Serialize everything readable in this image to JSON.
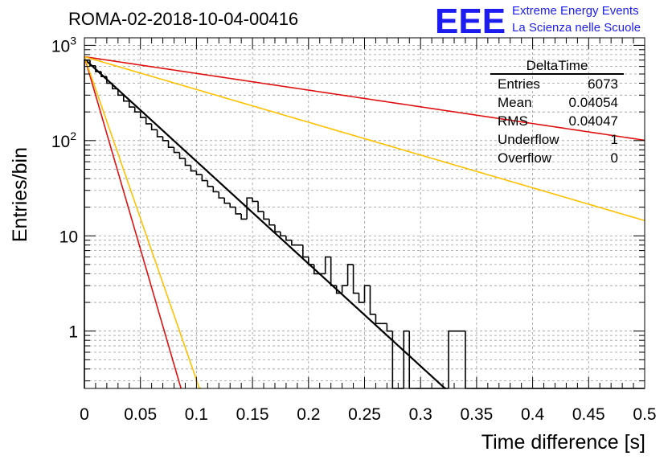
{
  "title": "ROMA-02-2018-10-04-00416",
  "logo": {
    "text": "EEE",
    "line1": "Extreme Energy Events",
    "line2": "La Scienza nelle Scuole",
    "color": "#1c1cf0"
  },
  "stats": {
    "name": "DeltaTime",
    "rows": [
      {
        "label": "Entries",
        "value": "6073"
      },
      {
        "label": "Mean",
        "value": "0.04054"
      },
      {
        "label": "RMS",
        "value": "0.04047"
      },
      {
        "label": "Underflow",
        "value": "1"
      },
      {
        "label": "Overflow",
        "value": "0"
      }
    ]
  },
  "chart_data": {
    "type": "histogram",
    "title": "ROMA-02-2018-10-04-00416",
    "xlabel": "Time difference [s]",
    "ylabel": "Entries/bin",
    "xlim": [
      0,
      0.5
    ],
    "ylim": [
      0.25,
      1200
    ],
    "yscale": "log",
    "grid": true,
    "bin_width": 0.005,
    "x_ticks": [
      "0",
      "0.05",
      "0.1",
      "0.15",
      "0.2",
      "0.25",
      "0.3",
      "0.35",
      "0.4",
      "0.45",
      "0.5"
    ],
    "x_tick_values": [
      0,
      0.05,
      0.1,
      0.15,
      0.2,
      0.25,
      0.3,
      0.35,
      0.4,
      0.45,
      0.5
    ],
    "y_ticks": [
      {
        "value": 1,
        "label": "1"
      },
      {
        "value": 10,
        "label": "10"
      },
      {
        "value": 100,
        "label": "10",
        "exp": "2"
      },
      {
        "value": 1000,
        "label": "10",
        "exp": "3"
      }
    ],
    "histogram": {
      "name": "DeltaTime",
      "values": [
        700,
        610,
        530,
        470,
        400,
        350,
        300,
        260,
        225,
        200,
        175,
        150,
        130,
        110,
        100,
        85,
        75,
        65,
        55,
        48,
        44,
        38,
        33,
        29,
        25,
        22,
        20,
        17,
        15,
        25,
        23,
        18,
        15,
        13,
        11,
        10,
        9,
        8,
        8,
        6,
        5,
        4,
        4,
        6,
        3,
        2.5,
        3,
        5,
        2.5,
        2,
        3,
        1.5,
        1.2,
        1.2,
        1,
        0,
        0,
        1,
        0,
        0,
        0,
        0,
        0,
        0,
        0,
        1,
        1,
        1,
        0,
        0,
        0,
        0,
        0,
        0,
        0,
        0,
        0,
        0,
        0,
        0,
        0,
        0,
        0,
        0,
        0,
        0,
        0,
        0,
        0,
        0,
        0,
        0,
        0,
        0,
        0,
        0,
        0,
        0,
        0,
        0
      ],
      "color": "#000000"
    },
    "series": [
      {
        "name": "fit",
        "type": "exp",
        "A": 720,
        "tau": 0.0404,
        "x_range": [
          0,
          0.5
        ],
        "color": "#000000",
        "width": 2.2
      },
      {
        "name": "red slow",
        "type": "exp",
        "A": 760,
        "tau": 0.2475,
        "x_range": [
          0,
          0.5
        ],
        "color": "#e01010",
        "width": 1.6
      },
      {
        "name": "orange slow",
        "type": "exp",
        "A": 760,
        "tau": 0.1262,
        "x_range": [
          0,
          0.5
        ],
        "color": "#ffc000",
        "width": 1.6
      },
      {
        "name": "red fast",
        "type": "exp",
        "A": 760,
        "tau": 0.01075,
        "x_range": [
          0,
          0.5
        ],
        "color": "#e01010",
        "width": 1.6
      },
      {
        "name": "orange fast",
        "type": "exp",
        "A": 760,
        "tau": 0.0128,
        "x_range": [
          0,
          0.5
        ],
        "color": "#ffc000",
        "width": 1.6
      }
    ]
  }
}
